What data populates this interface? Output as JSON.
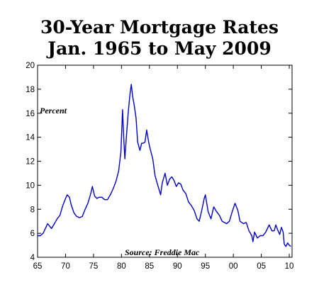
{
  "title_line1": "30-Year Mortgage Rates",
  "title_line2": "Jan. 1965 to May 2009",
  "colors": {
    "line": "#0000cc",
    "axis": "#000000",
    "background": "#ffffff"
  },
  "chart_data": {
    "type": "line",
    "ylabel": "Percent",
    "source": "Source: Freddie Mac",
    "xlim": [
      1965,
      2010.5
    ],
    "ylim": [
      4,
      20
    ],
    "grid": false,
    "xticks": [
      1965,
      1970,
      1975,
      1980,
      1985,
      1990,
      1995,
      2000,
      2005,
      2010
    ],
    "xtick_labels": [
      "65",
      "70",
      "75",
      "80",
      "85",
      "90",
      "95",
      "00",
      "05",
      "10"
    ],
    "yticks": [
      4,
      6,
      8,
      10,
      12,
      14,
      16,
      18,
      20
    ],
    "ytick_labels": [
      "4",
      "6",
      "8",
      "10",
      "12",
      "14",
      "16",
      "18",
      "20"
    ],
    "series": [
      {
        "values": [
          [
            1965.0,
            5.8
          ],
          [
            1965.5,
            5.8
          ],
          [
            1966.0,
            6.0
          ],
          [
            1966.5,
            6.5
          ],
          [
            1966.8,
            6.8
          ],
          [
            1967.5,
            6.4
          ],
          [
            1968.0,
            6.8
          ],
          [
            1968.5,
            7.2
          ],
          [
            1969.0,
            7.5
          ],
          [
            1969.5,
            8.3
          ],
          [
            1970.0,
            8.9
          ],
          [
            1970.3,
            9.2
          ],
          [
            1970.7,
            9.0
          ],
          [
            1971.0,
            8.4
          ],
          [
            1971.5,
            7.7
          ],
          [
            1972.0,
            7.4
          ],
          [
            1972.5,
            7.3
          ],
          [
            1973.0,
            7.4
          ],
          [
            1973.5,
            8.0
          ],
          [
            1974.0,
            8.5
          ],
          [
            1974.5,
            9.3
          ],
          [
            1974.8,
            9.9
          ],
          [
            1975.2,
            9.1
          ],
          [
            1975.6,
            8.9
          ],
          [
            1976.0,
            9.0
          ],
          [
            1976.5,
            9.0
          ],
          [
            1977.0,
            8.8
          ],
          [
            1977.5,
            8.8
          ],
          [
            1978.0,
            9.2
          ],
          [
            1978.5,
            9.7
          ],
          [
            1979.0,
            10.3
          ],
          [
            1979.5,
            11.2
          ],
          [
            1979.9,
            12.8
          ],
          [
            1980.2,
            16.3
          ],
          [
            1980.4,
            14.0
          ],
          [
            1980.6,
            12.2
          ],
          [
            1980.9,
            14.2
          ],
          [
            1981.2,
            16.0
          ],
          [
            1981.5,
            17.5
          ],
          [
            1981.75,
            18.4
          ],
          [
            1982.0,
            17.4
          ],
          [
            1982.3,
            16.6
          ],
          [
            1982.6,
            15.6
          ],
          [
            1982.9,
            13.6
          ],
          [
            1983.3,
            12.9
          ],
          [
            1983.6,
            13.5
          ],
          [
            1983.9,
            13.5
          ],
          [
            1984.2,
            13.6
          ],
          [
            1984.5,
            14.6
          ],
          [
            1984.9,
            13.5
          ],
          [
            1985.2,
            12.9
          ],
          [
            1985.6,
            12.2
          ],
          [
            1986.0,
            10.8
          ],
          [
            1986.5,
            10.0
          ],
          [
            1987.0,
            9.2
          ],
          [
            1987.3,
            10.2
          ],
          [
            1987.8,
            11.0
          ],
          [
            1988.2,
            10.0
          ],
          [
            1988.6,
            10.5
          ],
          [
            1989.0,
            10.7
          ],
          [
            1989.4,
            10.4
          ],
          [
            1989.8,
            9.9
          ],
          [
            1990.2,
            10.2
          ],
          [
            1990.6,
            10.1
          ],
          [
            1991.0,
            9.6
          ],
          [
            1991.5,
            9.3
          ],
          [
            1992.0,
            8.6
          ],
          [
            1992.5,
            8.3
          ],
          [
            1993.0,
            7.9
          ],
          [
            1993.5,
            7.2
          ],
          [
            1993.9,
            7.0
          ],
          [
            1994.3,
            7.8
          ],
          [
            1994.8,
            8.9
          ],
          [
            1995.0,
            9.2
          ],
          [
            1995.5,
            7.8
          ],
          [
            1996.0,
            7.2
          ],
          [
            1996.5,
            8.2
          ],
          [
            1997.0,
            7.8
          ],
          [
            1997.5,
            7.5
          ],
          [
            1998.0,
            7.0
          ],
          [
            1998.8,
            6.8
          ],
          [
            1999.3,
            7.0
          ],
          [
            1999.8,
            7.8
          ],
          [
            2000.3,
            8.5
          ],
          [
            2000.8,
            7.9
          ],
          [
            2001.2,
            7.0
          ],
          [
            2001.8,
            6.8
          ],
          [
            2002.3,
            6.9
          ],
          [
            2002.8,
            6.2
          ],
          [
            2003.3,
            5.8
          ],
          [
            2003.5,
            5.3
          ],
          [
            2003.8,
            6.1
          ],
          [
            2004.3,
            5.6
          ],
          [
            2004.8,
            5.8
          ],
          [
            2005.3,
            5.8
          ],
          [
            2005.8,
            6.1
          ],
          [
            2006.4,
            6.7
          ],
          [
            2006.9,
            6.2
          ],
          [
            2007.3,
            6.2
          ],
          [
            2007.6,
            6.7
          ],
          [
            2007.9,
            6.3
          ],
          [
            2008.3,
            5.9
          ],
          [
            2008.6,
            6.5
          ],
          [
            2008.9,
            6.1
          ],
          [
            2009.1,
            5.1
          ],
          [
            2009.4,
            4.9
          ],
          [
            2009.7,
            5.2
          ],
          [
            2010.0,
            5.0
          ],
          [
            2010.3,
            4.9
          ]
        ]
      }
    ]
  }
}
